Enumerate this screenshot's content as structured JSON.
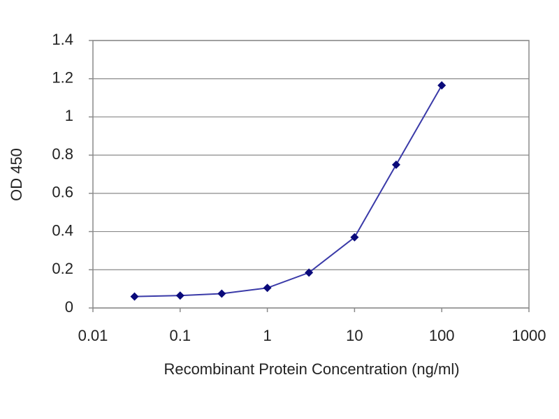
{
  "chart_data": {
    "type": "line",
    "x_label": "Recombinant Protein Concentration (ng/ml)",
    "y_label": "OD 450",
    "x_scale": "log",
    "x": [
      0.03,
      0.1,
      0.3,
      1,
      3,
      10,
      30,
      100
    ],
    "series": [
      {
        "color": "#3a3aa8",
        "marker_color": "#0a0a7a",
        "values": [
          0.06,
          0.065,
          0.075,
          0.105,
          0.185,
          0.37,
          0.75,
          1.165
        ]
      }
    ],
    "xlim": [
      0.01,
      1000
    ],
    "xticks": [
      0.01,
      0.1,
      1,
      10,
      100,
      1000
    ],
    "ylim": [
      0,
      1.4
    ],
    "yticks": [
      0,
      0.2,
      0.4,
      0.6,
      0.8,
      1,
      1.2,
      1.4
    ],
    "grid": true
  }
}
